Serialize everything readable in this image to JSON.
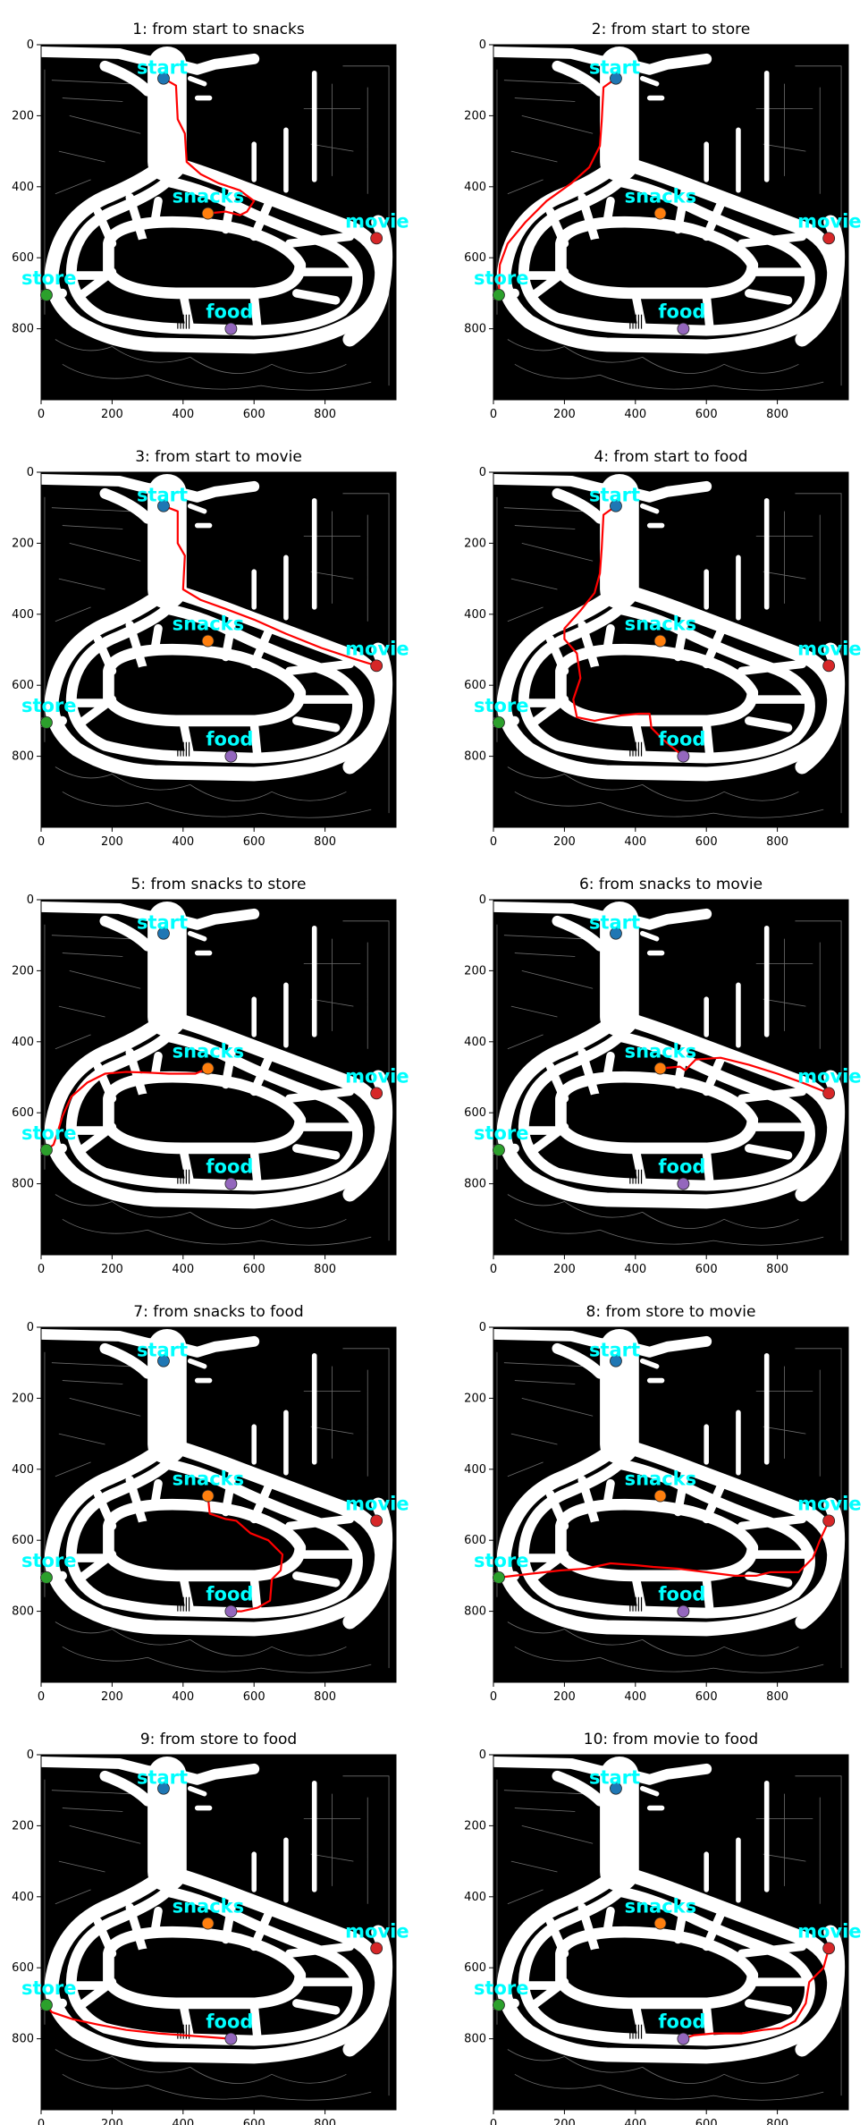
{
  "chart_data": {
    "type": "scatter",
    "layout": "5x2 grid of route panels over a floor-plan map image",
    "xlim": [
      0,
      1000
    ],
    "ylim": [
      1000,
      0
    ],
    "xticks": [
      0,
      200,
      400,
      600,
      800
    ],
    "yticks": [
      200,
      400,
      600,
      800
    ],
    "grid": false,
    "map": {
      "background": "#000000",
      "corridor_color": "#ffffff",
      "wall_line_color": "#8a8a8a"
    },
    "points": [
      {
        "name": "start",
        "x": 345,
        "y": 95,
        "color": "#1f77b4"
      },
      {
        "name": "snacks",
        "x": 470,
        "y": 475,
        "color": "#ff7f0e"
      },
      {
        "name": "movie",
        "x": 945,
        "y": 545,
        "color": "#d62728"
      },
      {
        "name": "store",
        "x": 15,
        "y": 705,
        "color": "#2ca02c"
      },
      {
        "name": "food",
        "x": 535,
        "y": 800,
        "color": "#9467bd"
      }
    ],
    "label_color": "#00ffff",
    "path_color": "#ff0000",
    "panels": [
      {
        "title": "1: from start to snacks",
        "path": [
          [
            345,
            95
          ],
          [
            380,
            115
          ],
          [
            385,
            210
          ],
          [
            405,
            250
          ],
          [
            410,
            330
          ],
          [
            450,
            365
          ],
          [
            500,
            390
          ],
          [
            560,
            410
          ],
          [
            600,
            440
          ],
          [
            580,
            470
          ],
          [
            560,
            480
          ],
          [
            520,
            470
          ],
          [
            470,
            475
          ]
        ]
      },
      {
        "title": "2: from start to store",
        "path": [
          [
            345,
            95
          ],
          [
            310,
            120
          ],
          [
            305,
            215
          ],
          [
            300,
            285
          ],
          [
            270,
            345
          ],
          [
            220,
            390
          ],
          [
            150,
            440
          ],
          [
            90,
            500
          ],
          [
            40,
            560
          ],
          [
            18,
            620
          ],
          [
            15,
            705
          ]
        ]
      },
      {
        "title": "3: from start to movie",
        "path": [
          [
            345,
            95
          ],
          [
            385,
            110
          ],
          [
            385,
            200
          ],
          [
            405,
            235
          ],
          [
            400,
            330
          ],
          [
            450,
            360
          ],
          [
            520,
            385
          ],
          [
            600,
            415
          ],
          [
            690,
            455
          ],
          [
            790,
            495
          ],
          [
            880,
            525
          ],
          [
            945,
            545
          ]
        ]
      },
      {
        "title": "4: from start to food",
        "path": [
          [
            345,
            95
          ],
          [
            310,
            120
          ],
          [
            305,
            215
          ],
          [
            300,
            285
          ],
          [
            285,
            340
          ],
          [
            245,
            390
          ],
          [
            200,
            440
          ],
          [
            200,
            470
          ],
          [
            235,
            510
          ],
          [
            245,
            580
          ],
          [
            225,
            640
          ],
          [
            235,
            690
          ],
          [
            285,
            700
          ],
          [
            360,
            685
          ],
          [
            410,
            680
          ],
          [
            440,
            680
          ],
          [
            445,
            720
          ],
          [
            480,
            755
          ],
          [
            535,
            800
          ]
        ]
      },
      {
        "title": "5: from snacks to store",
        "path": [
          [
            470,
            475
          ],
          [
            435,
            490
          ],
          [
            360,
            490
          ],
          [
            300,
            487
          ],
          [
            240,
            485
          ],
          [
            180,
            490
          ],
          [
            130,
            515
          ],
          [
            85,
            555
          ],
          [
            60,
            610
          ],
          [
            45,
            660
          ],
          [
            35,
            690
          ],
          [
            15,
            705
          ]
        ]
      },
      {
        "title": "6: from snacks to movie",
        "path": [
          [
            470,
            475
          ],
          [
            525,
            470
          ],
          [
            540,
            480
          ],
          [
            570,
            450
          ],
          [
            640,
            445
          ],
          [
            720,
            465
          ],
          [
            800,
            490
          ],
          [
            870,
            515
          ],
          [
            945,
            545
          ]
        ]
      },
      {
        "title": "7: from snacks to food",
        "path": [
          [
            470,
            475
          ],
          [
            475,
            525
          ],
          [
            520,
            540
          ],
          [
            550,
            545
          ],
          [
            590,
            580
          ],
          [
            640,
            600
          ],
          [
            680,
            640
          ],
          [
            675,
            685
          ],
          [
            650,
            710
          ],
          [
            645,
            770
          ],
          [
            610,
            790
          ],
          [
            565,
            800
          ],
          [
            535,
            800
          ]
        ]
      },
      {
        "title": "8: from store to movie",
        "path": [
          [
            15,
            705
          ],
          [
            100,
            695
          ],
          [
            190,
            685
          ],
          [
            260,
            680
          ],
          [
            330,
            665
          ],
          [
            400,
            670
          ],
          [
            450,
            675
          ],
          [
            520,
            680
          ],
          [
            600,
            690
          ],
          [
            680,
            700
          ],
          [
            740,
            700
          ],
          [
            780,
            690
          ],
          [
            860,
            690
          ],
          [
            900,
            650
          ],
          [
            920,
            600
          ],
          [
            945,
            545
          ]
        ]
      },
      {
        "title": "9: from store to food",
        "path": [
          [
            15,
            705
          ],
          [
            30,
            725
          ],
          [
            90,
            745
          ],
          [
            160,
            760
          ],
          [
            240,
            775
          ],
          [
            330,
            785
          ],
          [
            400,
            790
          ],
          [
            470,
            795
          ],
          [
            535,
            800
          ]
        ]
      },
      {
        "title": "10: from movie to food",
        "path": [
          [
            945,
            545
          ],
          [
            930,
            600
          ],
          [
            890,
            640
          ],
          [
            880,
            700
          ],
          [
            850,
            750
          ],
          [
            810,
            770
          ],
          [
            760,
            775
          ],
          [
            700,
            785
          ],
          [
            620,
            785
          ],
          [
            565,
            790
          ],
          [
            535,
            800
          ]
        ]
      }
    ]
  }
}
